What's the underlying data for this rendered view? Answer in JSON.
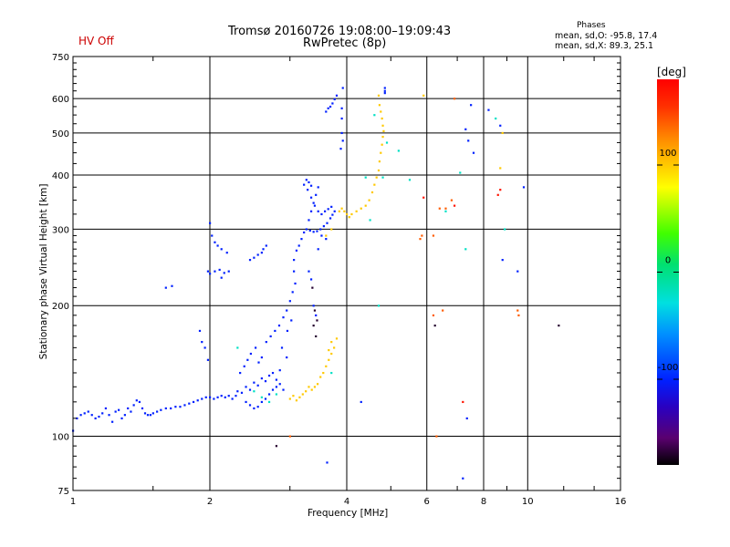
{
  "header": {
    "hv_status": "HV Off",
    "title_line1": "Tromsø 20160726 19:08:00–19:09:43",
    "title_line2": "RwPretec (8p)",
    "stats_header": "Phases",
    "stats_o": "mean, sd,O: -95.8, 17.4",
    "stats_x": "mean, sd,X:  89.3, 25.1"
  },
  "colorbar": {
    "unit": "[deg]",
    "ticks": [
      "100",
      "0",
      "-100"
    ],
    "tick_values": [
      100,
      0,
      -100
    ],
    "range": [
      -180,
      180
    ]
  },
  "chart_data": {
    "type": "scatter",
    "title": "Tromsø 20160726 19:08:00–19:09:43",
    "subtitle": "RwPretec (8p)",
    "xlabel": "Frequency [MHz]",
    "ylabel": "Stationary phase Virtual Height [km]",
    "x_scale": "log",
    "y_scale": "log",
    "xlim": [
      1,
      16
    ],
    "ylim": [
      75,
      750
    ],
    "x_ticks": [
      1,
      2,
      4,
      6,
      8,
      10,
      16
    ],
    "x_tick_labels": [
      "1",
      "2",
      "4",
      "6",
      "8",
      "10",
      "16"
    ],
    "y_ticks": [
      75,
      100,
      200,
      300,
      400,
      500,
      600,
      750
    ],
    "y_tick_labels": [
      "75",
      "100",
      "200",
      "300",
      "400",
      "500",
      "600",
      "750"
    ],
    "grid": true,
    "color_encoding": "phase [deg]",
    "series": [
      {
        "description_color": "blue",
        "phase": -100,
        "points": [
          [
            1.0,
            103
          ],
          [
            1.02,
            110
          ],
          [
            1.04,
            112
          ],
          [
            1.06,
            113
          ],
          [
            1.08,
            114
          ],
          [
            1.1,
            112
          ],
          [
            1.12,
            110
          ],
          [
            1.14,
            111
          ],
          [
            1.16,
            113
          ],
          [
            1.18,
            116
          ],
          [
            1.2,
            112
          ],
          [
            1.22,
            108
          ],
          [
            1.24,
            114
          ],
          [
            1.26,
            115
          ],
          [
            1.28,
            110
          ],
          [
            1.3,
            112
          ],
          [
            1.32,
            116
          ],
          [
            1.34,
            114
          ],
          [
            1.36,
            118
          ],
          [
            1.38,
            121
          ],
          [
            1.4,
            120
          ],
          [
            1.42,
            116
          ],
          [
            1.44,
            113
          ],
          [
            1.46,
            112
          ],
          [
            1.48,
            112
          ],
          [
            1.5,
            113
          ],
          [
            1.53,
            114
          ],
          [
            1.56,
            115
          ],
          [
            1.6,
            116
          ],
          [
            1.64,
            116
          ],
          [
            1.68,
            117
          ],
          [
            1.72,
            117
          ],
          [
            1.76,
            118
          ],
          [
            1.8,
            119
          ],
          [
            1.84,
            120
          ],
          [
            1.88,
            121
          ],
          [
            1.92,
            122
          ],
          [
            1.96,
            123
          ],
          [
            2.0,
            123
          ],
          [
            2.04,
            122
          ],
          [
            2.08,
            123
          ],
          [
            2.12,
            124
          ],
          [
            2.16,
            123
          ],
          [
            2.2,
            124
          ],
          [
            2.24,
            122
          ],
          [
            2.28,
            124
          ],
          [
            2.3,
            127
          ],
          [
            2.35,
            126
          ],
          [
            2.4,
            130
          ],
          [
            2.45,
            128
          ],
          [
            2.5,
            133
          ],
          [
            2.55,
            131
          ],
          [
            2.6,
            136
          ],
          [
            2.65,
            134
          ],
          [
            2.7,
            138
          ],
          [
            2.75,
            140
          ],
          [
            2.8,
            135
          ],
          [
            2.85,
            142
          ],
          [
            2.9,
            128
          ],
          [
            2.33,
            140
          ],
          [
            2.38,
            145
          ],
          [
            2.42,
            150
          ],
          [
            2.46,
            155
          ],
          [
            2.52,
            160
          ],
          [
            2.56,
            148
          ],
          [
            2.6,
            152
          ],
          [
            2.66,
            165
          ],
          [
            2.72,
            170
          ],
          [
            2.78,
            175
          ],
          [
            2.84,
            180
          ],
          [
            2.9,
            188
          ],
          [
            2.95,
            195
          ],
          [
            3.0,
            205
          ],
          [
            3.04,
            215
          ],
          [
            3.08,
            225
          ],
          [
            2.96,
            175
          ],
          [
            3.02,
            185
          ],
          [
            3.06,
            240
          ],
          [
            2.88,
            160
          ],
          [
            2.95,
            152
          ],
          [
            1.9,
            175
          ],
          [
            1.92,
            165
          ],
          [
            1.95,
            160
          ],
          [
            1.98,
            150
          ],
          [
            2.0,
            310
          ],
          [
            2.02,
            290
          ],
          [
            2.05,
            280
          ],
          [
            2.08,
            275
          ],
          [
            2.12,
            270
          ],
          [
            2.18,
            265
          ],
          [
            2.05,
            240
          ],
          [
            2.1,
            242
          ],
          [
            2.15,
            238
          ],
          [
            2.2,
            240
          ],
          [
            2.12,
            232
          ],
          [
            2.45,
            255
          ],
          [
            2.5,
            258
          ],
          [
            2.55,
            262
          ],
          [
            2.6,
            265
          ],
          [
            2.62,
            270
          ],
          [
            2.66,
            275
          ],
          [
            3.06,
            255
          ],
          [
            3.1,
            268
          ],
          [
            3.14,
            275
          ],
          [
            3.18,
            285
          ],
          [
            3.22,
            295
          ],
          [
            3.26,
            300
          ],
          [
            3.32,
            298
          ],
          [
            3.38,
            296
          ],
          [
            3.44,
            297
          ],
          [
            3.5,
            300
          ],
          [
            3.56,
            305
          ],
          [
            3.62,
            310
          ],
          [
            3.68,
            318
          ],
          [
            3.72,
            324
          ],
          [
            3.76,
            330
          ],
          [
            3.3,
            315
          ],
          [
            3.34,
            330
          ],
          [
            3.38,
            345
          ],
          [
            3.42,
            360
          ],
          [
            3.46,
            375
          ],
          [
            3.22,
            380
          ],
          [
            3.28,
            370
          ],
          [
            3.34,
            355
          ],
          [
            3.4,
            340
          ],
          [
            3.46,
            330
          ],
          [
            3.52,
            325
          ],
          [
            3.58,
            330
          ],
          [
            3.64,
            334
          ],
          [
            3.7,
            338
          ],
          [
            3.26,
            390
          ],
          [
            3.3,
            385
          ],
          [
            3.34,
            378
          ],
          [
            3.6,
            560
          ],
          [
            3.64,
            570
          ],
          [
            3.68,
            575
          ],
          [
            3.72,
            585
          ],
          [
            3.76,
            598
          ],
          [
            3.8,
            610
          ],
          [
            3.92,
            635
          ],
          [
            3.9,
            540
          ],
          [
            3.9,
            570
          ],
          [
            3.9,
            500
          ],
          [
            3.92,
            480
          ],
          [
            3.88,
            460
          ],
          [
            4.85,
            635
          ],
          [
            4.85,
            625
          ],
          [
            4.85,
            618
          ],
          [
            3.52,
            290
          ],
          [
            3.6,
            285
          ],
          [
            3.3,
            240
          ],
          [
            3.34,
            230
          ],
          [
            3.38,
            200
          ],
          [
            3.42,
            190
          ],
          [
            3.46,
            270
          ],
          [
            2.4,
            120
          ],
          [
            2.45,
            118
          ],
          [
            2.5,
            116
          ],
          [
            2.55,
            117
          ],
          [
            2.6,
            120
          ],
          [
            2.65,
            122
          ],
          [
            2.7,
            125
          ],
          [
            2.75,
            128
          ],
          [
            2.8,
            130
          ],
          [
            2.85,
            132
          ],
          [
            1.6,
            220
          ],
          [
            1.65,
            222
          ],
          [
            1.98,
            240
          ],
          [
            2.0,
            237
          ],
          [
            4.3,
            120
          ],
          [
            7.5,
            580
          ],
          [
            7.3,
            510
          ],
          [
            7.4,
            480
          ],
          [
            7.6,
            450
          ],
          [
            8.7,
            520
          ],
          [
            8.8,
            255
          ],
          [
            9.5,
            240
          ],
          [
            9.8,
            375
          ],
          [
            7.2,
            80
          ],
          [
            7.35,
            110
          ],
          [
            8.2,
            565
          ],
          [
            3.62,
            87
          ]
        ]
      },
      {
        "description_color": "cyan",
        "phase": -20,
        "points": [
          [
            2.6,
            123
          ],
          [
            2.7,
            120
          ],
          [
            2.3,
            160
          ],
          [
            2.5,
            127
          ],
          [
            2.8,
            125
          ],
          [
            3.7,
            140
          ],
          [
            4.4,
            395
          ],
          [
            4.6,
            550
          ],
          [
            4.9,
            475
          ],
          [
            5.2,
            455
          ],
          [
            5.5,
            390
          ],
          [
            6.6,
            330
          ],
          [
            7.1,
            405
          ],
          [
            7.3,
            270
          ],
          [
            8.5,
            540
          ],
          [
            8.9,
            300
          ],
          [
            4.8,
            395
          ],
          [
            4.7,
            200
          ],
          [
            4.5,
            315
          ]
        ]
      },
      {
        "description_color": "yellow",
        "phase": 100,
        "points": [
          [
            3.0,
            122
          ],
          [
            3.05,
            124
          ],
          [
            3.1,
            121
          ],
          [
            3.15,
            123
          ],
          [
            3.2,
            125
          ],
          [
            3.25,
            127
          ],
          [
            3.3,
            130
          ],
          [
            3.35,
            128
          ],
          [
            3.4,
            130
          ],
          [
            3.45,
            132
          ],
          [
            3.5,
            137
          ],
          [
            3.55,
            140
          ],
          [
            3.6,
            145
          ],
          [
            3.65,
            150
          ],
          [
            3.7,
            155
          ],
          [
            3.75,
            160
          ],
          [
            3.8,
            168
          ],
          [
            3.7,
            165
          ],
          [
            3.65,
            158
          ],
          [
            3.85,
            330
          ],
          [
            3.9,
            335
          ],
          [
            3.95,
            330
          ],
          [
            4.0,
            325
          ],
          [
            4.05,
            320
          ],
          [
            4.1,
            325
          ],
          [
            4.2,
            330
          ],
          [
            4.3,
            335
          ],
          [
            4.4,
            340
          ],
          [
            4.48,
            350
          ],
          [
            4.55,
            365
          ],
          [
            4.6,
            380
          ],
          [
            4.65,
            395
          ],
          [
            4.7,
            410
          ],
          [
            4.72,
            430
          ],
          [
            4.75,
            450
          ],
          [
            4.78,
            470
          ],
          [
            4.8,
            490
          ],
          [
            4.82,
            505
          ],
          [
            4.8,
            520
          ],
          [
            4.78,
            540
          ],
          [
            4.75,
            560
          ],
          [
            4.72,
            580
          ],
          [
            4.7,
            610
          ],
          [
            3.7,
            300
          ],
          [
            3.6,
            290
          ],
          [
            5.9,
            610
          ],
          [
            8.8,
            500
          ],
          [
            8.7,
            415
          ]
        ]
      },
      {
        "description_color": "orange",
        "phase": 140,
        "points": [
          [
            3.0,
            100
          ],
          [
            5.8,
            285
          ],
          [
            5.85,
            290
          ],
          [
            6.2,
            290
          ],
          [
            6.4,
            335
          ],
          [
            6.6,
            335
          ],
          [
            6.8,
            350
          ],
          [
            6.2,
            190
          ],
          [
            6.5,
            195
          ],
          [
            9.5,
            195
          ],
          [
            9.55,
            190
          ],
          [
            6.3,
            100
          ],
          [
            6.9,
            600
          ]
        ]
      },
      {
        "description_color": "red",
        "phase": 170,
        "points": [
          [
            5.9,
            355
          ],
          [
            6.9,
            340
          ],
          [
            7.2,
            120
          ],
          [
            8.6,
            360
          ],
          [
            8.7,
            370
          ]
        ]
      },
      {
        "description_color": "dark",
        "phase": -170,
        "points": [
          [
            2.8,
            95
          ],
          [
            6.25,
            180
          ],
          [
            11.7,
            180
          ],
          [
            3.36,
            220
          ],
          [
            3.4,
            195
          ],
          [
            3.44,
            185
          ],
          [
            3.38,
            180
          ],
          [
            3.42,
            170
          ]
        ]
      }
    ]
  }
}
